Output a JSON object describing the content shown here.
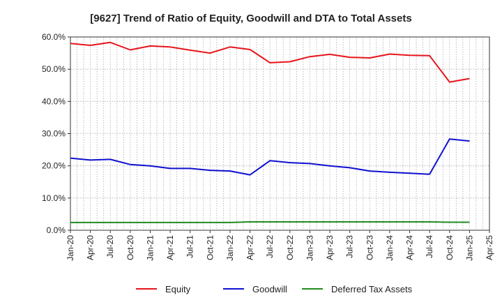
{
  "chart_data": {
    "type": "line",
    "title": "[9627]  Trend of Ratio of Equity, Goodwill and DTA to Total Assets",
    "xlabel": "",
    "ylabel": "",
    "ylim": [
      0,
      60
    ],
    "y_tick_labels": [
      "0.0%",
      "10.0%",
      "20.0%",
      "30.0%",
      "40.0%",
      "50.0%",
      "60.0%"
    ],
    "y_ticks": [
      0,
      10,
      20,
      30,
      40,
      50,
      60
    ],
    "x_tick_labels": [
      "Jan-20",
      "Apr-20",
      "Jul-20",
      "Oct-20",
      "Jan-21",
      "Apr-21",
      "Jul-21",
      "Oct-21",
      "Jan-22",
      "Apr-22",
      "Jul-22",
      "Oct-22",
      "Jan-23",
      "Apr-23",
      "Jul-23",
      "Oct-23",
      "Jan-24",
      "Apr-24",
      "Jul-24",
      "Oct-24",
      "Jan-25",
      "Apr-25"
    ],
    "grid": true,
    "legend_position": "bottom",
    "series": [
      {
        "name": "Equity",
        "color": "#e8141b",
        "values": [
          58.0,
          57.4,
          58.3,
          56.0,
          57.2,
          56.9,
          55.9,
          55.0,
          56.9,
          56.1,
          52.0,
          52.3,
          53.9,
          54.6,
          53.7,
          53.5,
          54.7,
          54.3,
          54.2,
          46.0,
          47.1
        ]
      },
      {
        "name": "Goodwill",
        "color": "#1010d0",
        "values": [
          22.4,
          21.8,
          22.0,
          20.4,
          20.0,
          19.2,
          19.2,
          18.6,
          18.4,
          17.2,
          21.6,
          21.0,
          20.7,
          20.0,
          19.4,
          18.4,
          18.0,
          17.7,
          17.4,
          28.3,
          27.7
        ]
      },
      {
        "name": "Deferred Tax Assets",
        "color": "#1f8c1f",
        "values": [
          2.4,
          2.4,
          2.4,
          2.4,
          2.4,
          2.4,
          2.4,
          2.4,
          2.4,
          2.6,
          2.6,
          2.6,
          2.6,
          2.6,
          2.6,
          2.6,
          2.6,
          2.6,
          2.6,
          2.5,
          2.5
        ]
      }
    ]
  }
}
